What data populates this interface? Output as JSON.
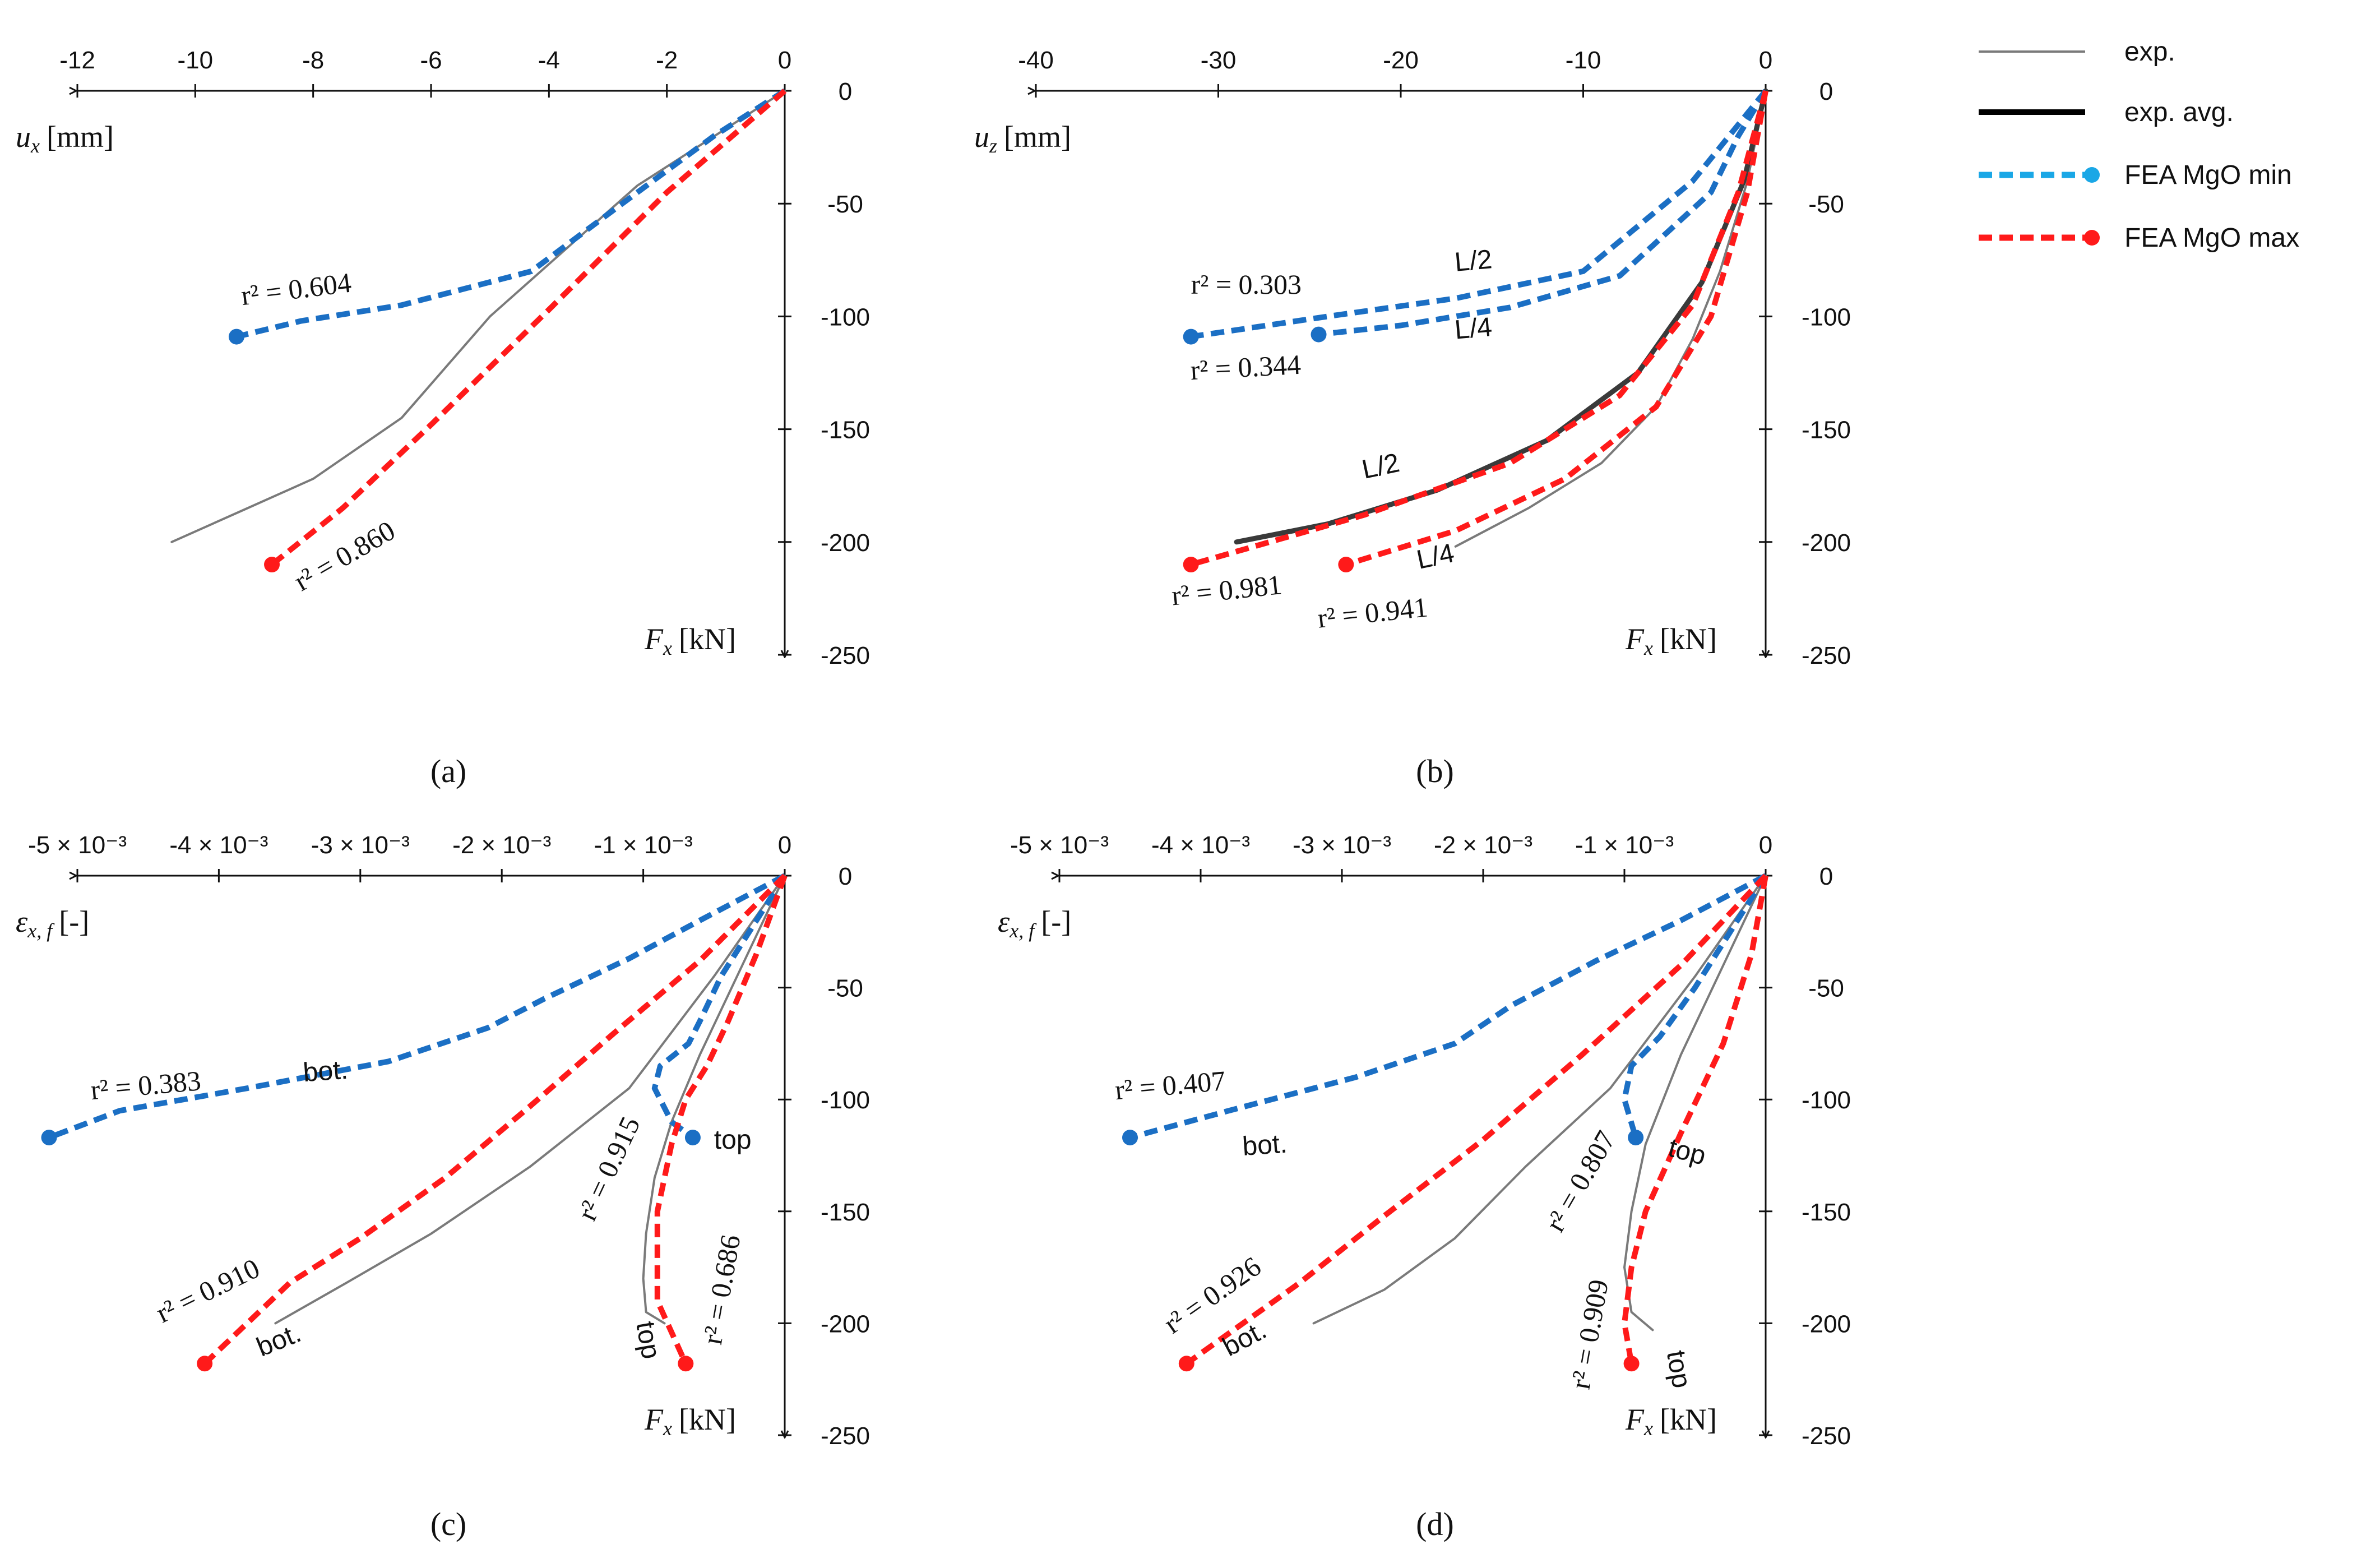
{
  "legend": [
    {
      "key": "exp",
      "label": "exp.",
      "color": "#7a7a7a",
      "style": "thin"
    },
    {
      "key": "avg",
      "label": "exp. avg.",
      "color": "#000000",
      "style": "thick"
    },
    {
      "key": "min",
      "label": "FEA MgO min",
      "color": "#1aa7e6",
      "style": "dashed-marker"
    },
    {
      "key": "max",
      "label": "FEA MgO max",
      "color": "#ff1a1a",
      "style": "dashed-marker"
    }
  ],
  "colors": {
    "exp": "#7a7a7a",
    "avg": "#3a3a3a",
    "min": "#1b6fc4",
    "max": "#ff1a1a",
    "axis": "#111111"
  },
  "chart_data": [
    {
      "id": "a",
      "type": "line",
      "caption": "(a)",
      "xlabel": "u",
      "xsub": "x",
      "xunit": "[mm]",
      "ylabel": "F",
      "ysub": "x",
      "yunit": "[kN]",
      "xlim": [
        -12,
        0
      ],
      "ylim": [
        -250,
        0
      ],
      "xticks": [
        -12,
        -10,
        -8,
        -6,
        -4,
        -2,
        0
      ],
      "xticklabels": [
        "-12",
        "-10",
        "-8",
        "-6",
        "-4",
        "-2",
        "0"
      ],
      "yticks": [
        0,
        -50,
        -100,
        -150,
        -200,
        -250
      ],
      "yticklabels": [
        "0",
        "-50",
        "-100",
        "-150",
        "-200",
        "-250"
      ],
      "series": [
        {
          "name": "exp.",
          "kind": "exp",
          "x": [
            0,
            -2.5,
            -5,
            -6.5,
            -8,
            -9.2,
            -10.4
          ],
          "y": [
            0,
            -42,
            -100,
            -145,
            -172,
            -186,
            -200
          ]
        },
        {
          "name": "FEA MgO min",
          "kind": "min",
          "x": [
            0,
            -1.2,
            -2.5,
            -4.3,
            -6.5,
            -8.2,
            -9.3
          ],
          "y": [
            0,
            -20,
            -45,
            -80,
            -95,
            -102,
            -109
          ]
        },
        {
          "name": "FEA MgO max",
          "kind": "max",
          "x": [
            0,
            -2,
            -4,
            -6,
            -7.5,
            -8.7
          ],
          "y": [
            0,
            -45,
            -97,
            -148,
            -185,
            -210
          ]
        }
      ],
      "annotations": [
        {
          "text": "r² = 0.604",
          "x": -9.2,
          "y": -95,
          "rot": -7
        },
        {
          "text": "r² = 0.860",
          "x": -8.2,
          "y": -222,
          "rot": -30
        }
      ]
    },
    {
      "id": "b",
      "type": "line",
      "caption": "(b)",
      "xlabel": "u",
      "xsub": "z",
      "xunit": "[mm]",
      "ylabel": "F",
      "ysub": "x",
      "yunit": "[kN]",
      "xlim": [
        -40,
        0
      ],
      "ylim": [
        -250,
        0
      ],
      "xticks": [
        -40,
        -30,
        -20,
        -10,
        0
      ],
      "xticklabels": [
        "-40",
        "-30",
        "-20",
        "-10",
        "0"
      ],
      "yticks": [
        0,
        -50,
        -100,
        -150,
        -200,
        -250
      ],
      "yticklabels": [
        "0",
        "-50",
        "-100",
        "-150",
        "-200",
        "-250"
      ],
      "series": [
        {
          "name": "exp.",
          "kind": "exp",
          "x": [
            0,
            -1,
            -2.5,
            -4,
            -6,
            -9,
            -13,
            -17
          ],
          "y": [
            0,
            -40,
            -80,
            -110,
            -140,
            -165,
            -185,
            -202
          ]
        },
        {
          "name": "exp. avg.",
          "kind": "avg",
          "x": [
            0,
            -1.2,
            -3.5,
            -7,
            -12,
            -18,
            -24,
            -29
          ],
          "y": [
            0,
            -40,
            -85,
            -125,
            -155,
            -177,
            -192,
            -200
          ]
        },
        {
          "name": "FEA MgO min L/2",
          "kind": "min",
          "x": [
            0,
            -2,
            -4,
            -10,
            -17,
            -24,
            -31.5
          ],
          "y": [
            0,
            -20,
            -40,
            -80,
            -92,
            -100,
            -109
          ]
        },
        {
          "name": "FEA MgO min L/4",
          "kind": "min",
          "x": [
            0,
            -1.5,
            -3,
            -8,
            -14,
            -20,
            -24.5
          ],
          "y": [
            0,
            -20,
            -45,
            -82,
            -96,
            -104,
            -108
          ]
        },
        {
          "name": "FEA MgO max L/2",
          "kind": "max",
          "x": [
            0,
            -1.5,
            -4,
            -8,
            -14,
            -22,
            -31.5
          ],
          "y": [
            0,
            -45,
            -95,
            -135,
            -165,
            -188,
            -210
          ]
        },
        {
          "name": "FEA MgO max L/4",
          "kind": "max",
          "x": [
            0,
            -1,
            -3,
            -6,
            -11,
            -17,
            -23
          ],
          "y": [
            0,
            -45,
            -100,
            -140,
            -172,
            -195,
            -210
          ]
        }
      ],
      "annotations": [
        {
          "text": "r² = 0.303",
          "x": -31.5,
          "y": -90,
          "rot": 0
        },
        {
          "text": "r² = 0.344",
          "x": -31.5,
          "y": -128,
          "rot": -3
        },
        {
          "text": "r² = 0.981",
          "x": -32.5,
          "y": -228,
          "rot": -6
        },
        {
          "text": "r² = 0.941",
          "x": -24.5,
          "y": -238,
          "rot": -6
        }
      ],
      "tags": [
        {
          "text": "L/2",
          "x": -17,
          "y": -80,
          "rot": -5
        },
        {
          "text": "L/4",
          "x": -17,
          "y": -110,
          "rot": -5
        },
        {
          "text": "L/2",
          "x": -22,
          "y": -172,
          "rot": -12
        },
        {
          "text": "L/4",
          "x": -19,
          "y": -212,
          "rot": -12
        }
      ]
    },
    {
      "id": "c",
      "type": "line",
      "caption": "(c)",
      "xlabel": "ε",
      "xsub": "x, f",
      "xunit": "[-]",
      "ylabel": "F",
      "ysub": "x",
      "yunit": "[kN]",
      "xlim": [
        -0.005,
        0
      ],
      "ylim": [
        -250,
        0
      ],
      "xticks": [
        -0.005,
        -0.004,
        -0.003,
        -0.002,
        -0.001,
        0
      ],
      "xticklabels": [
        "-5 × 10⁻³",
        "-4 × 10⁻³",
        "-3 × 10⁻³",
        "-2 × 10⁻³",
        "-1 × 10⁻³",
        "0"
      ],
      "yticks": [
        0,
        -50,
        -100,
        -150,
        -200,
        -250
      ],
      "yticklabels": [
        "0",
        "-50",
        "-100",
        "-150",
        "-200",
        "-250"
      ],
      "series": [
        {
          "name": "exp. bot.",
          "kind": "exp",
          "x": [
            0,
            -0.0005,
            -0.0011,
            -0.0018,
            -0.0025,
            -0.0031,
            -0.0036
          ],
          "y": [
            0,
            -45,
            -95,
            -130,
            -160,
            -182,
            -200
          ]
        },
        {
          "name": "exp. top",
          "kind": "exp",
          "x": [
            0,
            -0.0003,
            -0.0006,
            -0.0008,
            -0.00092,
            -0.00098,
            -0.001,
            -0.00098,
            -0.00085
          ],
          "y": [
            0,
            -40,
            -80,
            -110,
            -135,
            -160,
            -180,
            -195,
            -200
          ]
        },
        {
          "name": "FEA MgO min bot.",
          "kind": "min",
          "x": [
            0,
            -0.0006,
            -0.0011,
            -0.0017,
            -0.0021,
            -0.0028,
            -0.0038,
            -0.0047,
            -0.0052
          ],
          "y": [
            0,
            -20,
            -37,
            -55,
            -68,
            -83,
            -95,
            -105,
            -117
          ]
        },
        {
          "name": "FEA MgO min top",
          "kind": "min",
          "x": [
            0,
            -0.0002,
            -0.00045,
            -0.0006,
            -0.00068,
            -0.00088,
            -0.00092,
            -0.0008,
            -0.00065
          ],
          "y": [
            0,
            -20,
            -45,
            -65,
            -75,
            -85,
            -95,
            -110,
            -117
          ]
        },
        {
          "name": "FEA MgO max bot.",
          "kind": "max",
          "x": [
            0,
            -0.0006,
            -0.0012,
            -0.0018,
            -0.0024,
            -0.003,
            -0.0035,
            -0.0041
          ],
          "y": [
            0,
            -38,
            -70,
            -103,
            -135,
            -162,
            -182,
            -218
          ]
        },
        {
          "name": "FEA MgO max top",
          "kind": "max",
          "x": [
            0,
            -0.0002,
            -0.0004,
            -0.00055,
            -0.0007,
            -0.0008,
            -0.0009,
            -0.0009,
            -0.0007
          ],
          "y": [
            0,
            -35,
            -65,
            -85,
            -100,
            -120,
            -150,
            -190,
            -218
          ]
        }
      ],
      "annotations": [
        {
          "text": "r² = 0.383",
          "x": -0.0049,
          "y": -100,
          "rot": -5
        },
        {
          "text": "r² = 0.910",
          "x": -0.0044,
          "y": -200,
          "rot": -26
        },
        {
          "text": "r² = 0.915",
          "x": -0.00135,
          "y": -155,
          "rot": -65
        },
        {
          "text": "r² = 0.686",
          "x": -0.00045,
          "y": -210,
          "rot": -80
        }
      ],
      "tags": [
        {
          "text": "bot.",
          "x": -0.0034,
          "y": -92,
          "rot": -4
        },
        {
          "text": "top",
          "x": -0.0005,
          "y": -122,
          "rot": 0
        },
        {
          "text": "bot.",
          "x": -0.0037,
          "y": -215,
          "rot": -22
        },
        {
          "text": "top",
          "x": -0.00105,
          "y": -200,
          "rot": 80
        }
      ]
    },
    {
      "id": "d",
      "type": "line",
      "caption": "(d)",
      "xlabel": "ε",
      "xsub": "x, f",
      "xunit": "[-]",
      "ylabel": "F",
      "ysub": "x",
      "yunit": "[kN]",
      "xlim": [
        -0.005,
        0
      ],
      "ylim": [
        -250,
        0
      ],
      "xticks": [
        -0.005,
        -0.004,
        -0.003,
        -0.002,
        -0.001,
        0
      ],
      "xticklabels": [
        "-5 × 10⁻³",
        "-4 × 10⁻³",
        "-3 × 10⁻³",
        "-2 × 10⁻³",
        "-1 × 10⁻³",
        "0"
      ],
      "yticks": [
        0,
        -50,
        -100,
        -150,
        -200,
        -250
      ],
      "yticklabels": [
        "0",
        "-50",
        "-100",
        "-150",
        "-200",
        "-250"
      ],
      "series": [
        {
          "name": "exp. bot.",
          "kind": "exp",
          "x": [
            0,
            -0.0005,
            -0.0011,
            -0.0017,
            -0.0022,
            -0.0027,
            -0.0032
          ],
          "y": [
            0,
            -45,
            -95,
            -130,
            -162,
            -185,
            -200
          ]
        },
        {
          "name": "exp. top",
          "kind": "exp",
          "x": [
            0,
            -0.0003,
            -0.0006,
            -0.00085,
            -0.00095,
            -0.001,
            -0.00095,
            -0.0008
          ],
          "y": [
            0,
            -40,
            -80,
            -120,
            -150,
            -175,
            -195,
            -203
          ]
        },
        {
          "name": "FEA MgO min bot.",
          "kind": "min",
          "x": [
            0,
            -0.0006,
            -0.0012,
            -0.0018,
            -0.0022,
            -0.0029,
            -0.0038,
            -0.0045
          ],
          "y": [
            0,
            -20,
            -38,
            -58,
            -75,
            -90,
            -105,
            -117
          ]
        },
        {
          "name": "FEA MgO min top",
          "kind": "min",
          "x": [
            0,
            -0.00025,
            -0.0005,
            -0.00075,
            -0.00095,
            -0.001,
            -0.00092
          ],
          "y": [
            0,
            -25,
            -50,
            -72,
            -85,
            -100,
            -117
          ]
        },
        {
          "name": "FEA MgO max bot.",
          "kind": "max",
          "x": [
            0,
            -0.0006,
            -0.0013,
            -0.002,
            -0.0027,
            -0.0033,
            -0.0041
          ],
          "y": [
            0,
            -40,
            -80,
            -118,
            -152,
            -182,
            -218
          ]
        },
        {
          "name": "FEA MgO max top",
          "kind": "max",
          "x": [
            0,
            -0.0001,
            -0.0003,
            -0.0006,
            -0.00085,
            -0.00095,
            -0.001,
            -0.00095
          ],
          "y": [
            0,
            -35,
            -75,
            -115,
            -150,
            -175,
            -200,
            -218
          ]
        }
      ],
      "annotations": [
        {
          "text": "r² = 0.407",
          "x": -0.0046,
          "y": -100,
          "rot": -5
        },
        {
          "text": "r² = 0.926",
          "x": -0.0042,
          "y": -205,
          "rot": -35
        },
        {
          "text": "r² = 0.807",
          "x": -0.00145,
          "y": -160,
          "rot": -60
        },
        {
          "text": "r² = 0.909",
          "x": -0.00125,
          "y": -230,
          "rot": -80
        }
      ],
      "tags": [
        {
          "text": "bot.",
          "x": -0.0037,
          "y": -125,
          "rot": -4
        },
        {
          "text": "top",
          "x": -0.0007,
          "y": -125,
          "rot": 15
        },
        {
          "text": "bot.",
          "x": -0.0038,
          "y": -215,
          "rot": -28
        },
        {
          "text": "top",
          "x": -0.0007,
          "y": -213,
          "rot": 80
        }
      ]
    }
  ]
}
